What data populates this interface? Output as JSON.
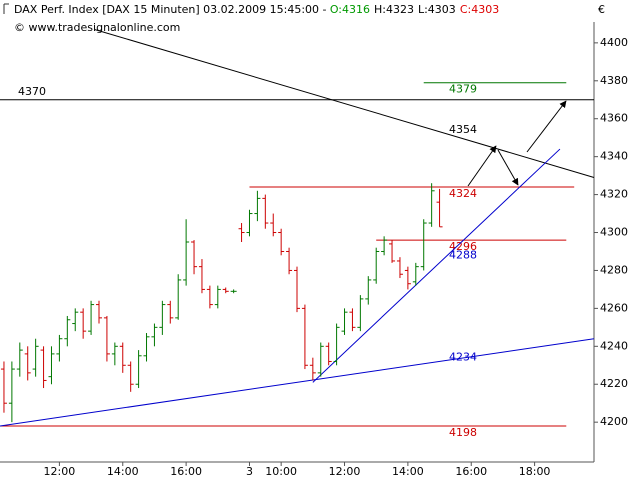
{
  "chart_data": {
    "type": "ohlc",
    "title": "DAX Perf. Index [DAX  15 Minuten] 03.02.2009 15:45:00 -",
    "ohlc_labels": [
      {
        "text": "O:4316",
        "color": "#009900"
      },
      {
        "text": "H:4323",
        "color": "#000000"
      },
      {
        "text": "L:4303",
        "color": "#000000"
      },
      {
        "text": "C:4303",
        "color": "#dd0000"
      }
    ],
    "subtitle": "© www.tradesignalonline.com",
    "currency": "€",
    "up_color": "#007700",
    "down_color": "#cc0000",
    "xlim": [
      -0.5,
      74.5
    ],
    "xticks": [
      {
        "value": 7,
        "label": "12:00"
      },
      {
        "value": 15,
        "label": "14:00"
      },
      {
        "value": 23,
        "label": "16:00"
      },
      {
        "value": 31,
        "label": "3"
      },
      {
        "value": 35,
        "label": "10:00"
      },
      {
        "value": 43,
        "label": "12:00"
      },
      {
        "value": 51,
        "label": "14:00"
      },
      {
        "value": 59,
        "label": "16:00"
      },
      {
        "value": 67,
        "label": "18:00"
      }
    ],
    "ylim": [
      4179,
      4411
    ],
    "yticks": [
      4200,
      4220,
      4240,
      4260,
      4280,
      4300,
      4320,
      4340,
      4360,
      4380,
      4400
    ],
    "x": [
      0,
      1,
      2,
      3,
      4,
      5,
      6,
      7,
      8,
      9,
      10,
      11,
      12,
      13,
      14,
      15,
      16,
      17,
      18,
      19,
      20,
      21,
      22,
      23,
      24,
      25,
      26,
      27,
      28,
      29,
      30,
      31,
      32,
      33,
      34,
      35,
      36,
      37,
      38,
      39,
      40,
      41,
      42,
      43,
      44,
      45,
      46,
      47,
      48,
      49,
      50,
      51,
      52,
      53,
      54,
      55
    ],
    "open": [
      4228,
      4210,
      4228,
      4236,
      4228,
      4238,
      4224,
      4236,
      4244,
      4252,
      4258,
      4248,
      4262,
      4255,
      4236,
      4240,
      4230,
      4220,
      4235,
      4245,
      4250,
      4262,
      4255,
      4275,
      4295,
      4282,
      4270,
      4262,
      4270,
      4269,
      4302,
      4300,
      4310,
      4318,
      4305,
      4300,
      4290,
      4280,
      4260,
      4230,
      4226,
      4240,
      4232,
      4248,
      4258,
      4250,
      4265,
      4275,
      4290,
      4294,
      4285,
      4280,
      4274,
      4282,
      4305,
      4316
    ],
    "high": [
      4232,
      4232,
      4242,
      4240,
      4244,
      4240,
      4240,
      4246,
      4256,
      4260,
      4260,
      4264,
      4264,
      4256,
      4242,
      4242,
      4232,
      4238,
      4247,
      4252,
      4264,
      4264,
      4278,
      4307,
      4296,
      4286,
      4272,
      4272,
      4271,
      4270,
      4305,
      4312,
      4322,
      4320,
      4310,
      4302,
      4292,
      4282,
      4262,
      4234,
      4242,
      4242,
      4252,
      4260,
      4260,
      4267,
      4277,
      4292,
      4298,
      4296,
      4287,
      4282,
      4284,
      4307,
      4326,
      4323
    ],
    "low": [
      4205,
      4200,
      4224,
      4222,
      4224,
      4218,
      4220,
      4232,
      4240,
      4248,
      4244,
      4246,
      4252,
      4232,
      4230,
      4226,
      4216,
      4218,
      4232,
      4240,
      4246,
      4252,
      4254,
      4272,
      4278,
      4268,
      4260,
      4260,
      4268,
      4268,
      4295,
      4298,
      4306,
      4302,
      4298,
      4288,
      4278,
      4258,
      4228,
      4222,
      4224,
      4230,
      4230,
      4246,
      4248,
      4248,
      4262,
      4273,
      4288,
      4284,
      4276,
      4270,
      4272,
      4280,
      4303,
      4303
    ],
    "close": [
      4210,
      4228,
      4238,
      4226,
      4240,
      4222,
      4236,
      4244,
      4254,
      4258,
      4248,
      4262,
      4255,
      4236,
      4240,
      4230,
      4220,
      4235,
      4245,
      4250,
      4262,
      4255,
      4275,
      4295,
      4282,
      4270,
      4262,
      4270,
      4269,
      4269,
      4300,
      4310,
      4318,
      4305,
      4300,
      4290,
      4280,
      4260,
      4230,
      4226,
      4240,
      4232,
      4250,
      4258,
      4250,
      4265,
      4275,
      4290,
      4296,
      4285,
      4278,
      4273,
      4282,
      4305,
      4322,
      4303
    ],
    "levels": [
      {
        "value": 4379,
        "color": "#007700",
        "x": [
          53,
          71
        ]
      },
      {
        "value": 4370,
        "color": "#000000",
        "x": [
          -0.5,
          74.5
        ]
      },
      {
        "value": 4324,
        "color": "#cc0000",
        "x": [
          31,
          72
        ]
      },
      {
        "value": 4296,
        "color": "#cc0000",
        "x": [
          47,
          71
        ]
      },
      {
        "value": 4198,
        "color": "#cc0000",
        "x": [
          -0.5,
          71
        ]
      }
    ],
    "annotations": [
      {
        "value": 4354,
        "color": "#000000"
      },
      {
        "value": 4288,
        "color": "#0000cc"
      },
      {
        "value": 4234,
        "color": "#0000cc"
      }
    ],
    "trendlines": [
      {
        "color": "#000000",
        "x": [
          11.5,
          74.5
        ],
        "values": [
          4407,
          4329
        ]
      },
      {
        "color": "#0000cc",
        "x": [
          -0.5,
          74.5
        ],
        "values": [
          4198,
          4244
        ]
      },
      {
        "color": "#0000cc",
        "x": [
          39,
          70.2
        ],
        "values": [
          4221,
          4344
        ]
      }
    ]
  }
}
